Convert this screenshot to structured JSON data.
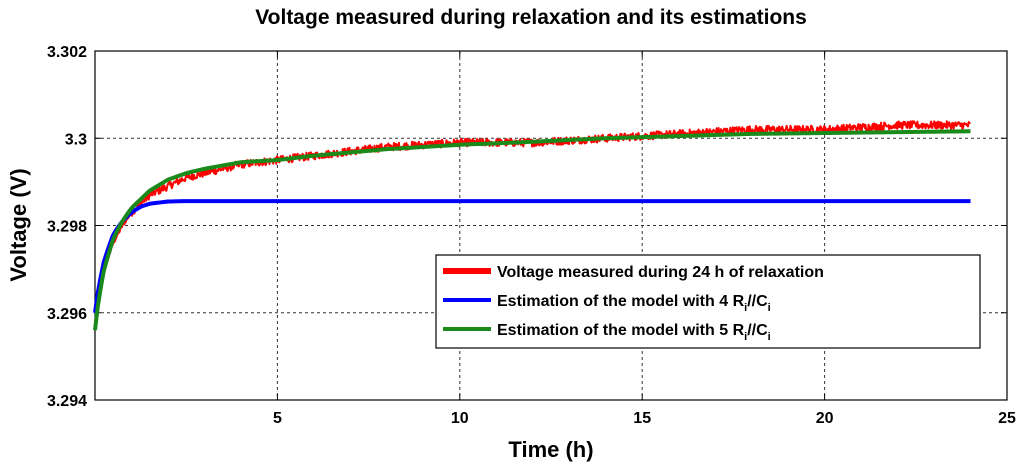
{
  "chart_data": {
    "type": "line",
    "title": "Voltage measured  during relaxation and its estimations",
    "xlabel": "Time (h)",
    "ylabel": "Voltage (V)",
    "xlim": [
      0,
      25
    ],
    "ylim": [
      3.294,
      3.302
    ],
    "xticks": [
      5,
      10,
      15,
      20,
      25
    ],
    "xtick_labels": [
      "5",
      "10",
      "15",
      "20",
      "25"
    ],
    "yticks": [
      3.294,
      3.296,
      3.298,
      3.3,
      3.302
    ],
    "ytick_labels": [
      "3.294",
      "3.296",
      "3.298",
      "3.3",
      "3.302"
    ],
    "grid": true,
    "legend_position": "lower-right",
    "series": [
      {
        "name": "Voltage measured during  24 h of relaxation",
        "legend_main": "Voltage measured during  24 h of relaxation",
        "color": "#ff0000",
        "noisy": true,
        "x": [
          0,
          0.1,
          0.25,
          0.5,
          0.75,
          1.0,
          1.5,
          2.0,
          2.5,
          3.0,
          4.0,
          5.0,
          6.0,
          8.0,
          10.0,
          12.0,
          14.0,
          16.0,
          18.0,
          20.0,
          22.0,
          24.0
        ],
        "y": [
          3.2958,
          3.2964,
          3.297,
          3.2976,
          3.298,
          3.2983,
          3.2987,
          3.2989,
          3.2991,
          3.2992,
          3.2994,
          3.2995,
          3.2996,
          3.2998,
          3.2999,
          3.2999,
          3.3,
          3.3001,
          3.3002,
          3.3002,
          3.3003,
          3.3003
        ]
      },
      {
        "name": "Estimation of the model with 4 Ri//Ci",
        "legend_main": "Estimation of the model with 4 R",
        "legend_mid": "//C",
        "legend_sub": "i",
        "color": "#0000ff",
        "x": [
          0,
          0.1,
          0.25,
          0.5,
          0.75,
          1.0,
          1.25,
          1.5,
          2.0,
          2.5,
          3.0,
          5.0,
          10.0,
          15.0,
          20.0,
          24.0
        ],
        "y": [
          3.296,
          3.2966,
          3.2972,
          3.2978,
          3.2981,
          3.2983,
          3.29843,
          3.2985,
          3.29855,
          3.29856,
          3.29856,
          3.29856,
          3.29856,
          3.29856,
          3.29856,
          3.29856
        ]
      },
      {
        "name": "Estimation of the model with 5 Ri//Ci",
        "legend_main": "Estimation of the model with 5 R",
        "legend_mid": "//C",
        "legend_sub": "i",
        "color": "#1a8a1a",
        "x": [
          0,
          0.1,
          0.25,
          0.5,
          0.75,
          1.0,
          1.5,
          2.0,
          2.5,
          3.0,
          4.0,
          5.0,
          6.0,
          8.0,
          10.0,
          12.0,
          14.0,
          16.0,
          18.0,
          20.0,
          22.0,
          24.0
        ],
        "y": [
          3.2956,
          3.2963,
          3.297,
          3.2977,
          3.2981,
          3.2984,
          3.2988,
          3.29905,
          3.2992,
          3.2993,
          3.29945,
          3.2995,
          3.2996,
          3.29975,
          3.29985,
          3.29992,
          3.3,
          3.30005,
          3.3001,
          3.30012,
          3.30014,
          3.30016
        ]
      }
    ]
  }
}
